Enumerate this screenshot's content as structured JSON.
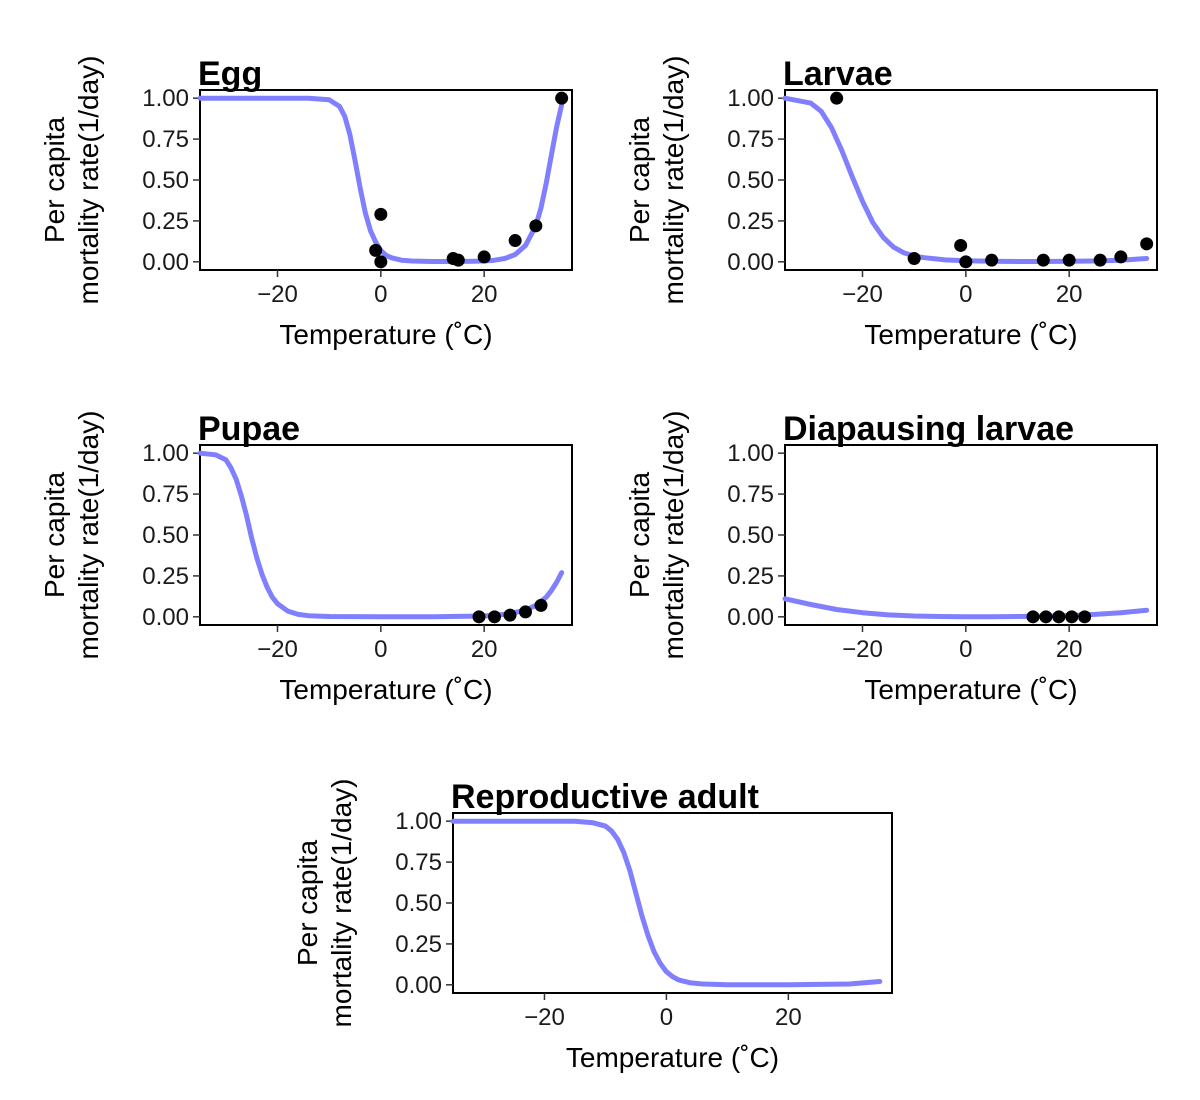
{
  "chart_data": [
    {
      "type": "line",
      "title": "Egg",
      "xlabel": "Temperature (˚C)",
      "ylabel": [
        "Per capita",
        "mortality rate(1/day)"
      ],
      "xlim": [
        -35,
        37
      ],
      "ylim": [
        -0.05,
        1.05
      ],
      "xticks": [
        -20,
        0,
        20
      ],
      "xtick_labels": [
        "−20",
        "0",
        "20"
      ],
      "yticks": [
        0,
        0.25,
        0.5,
        0.75,
        1.0
      ],
      "ytick_labels": [
        "0.00",
        "0.25",
        "0.50",
        "0.75",
        "1.00"
      ],
      "line_color": "#8080ff",
      "point_color": "#000000",
      "curve": {
        "x": [
          -35,
          -14,
          -10,
          -8,
          -7,
          -6,
          -5,
          -4,
          -3,
          -2,
          -1,
          0,
          1,
          2,
          4,
          6,
          10,
          14,
          18,
          20,
          22,
          24,
          26,
          28,
          30,
          31,
          32,
          33,
          34,
          35
        ],
        "y": [
          1.0,
          1.0,
          0.99,
          0.95,
          0.89,
          0.78,
          0.62,
          0.45,
          0.3,
          0.19,
          0.12,
          0.07,
          0.04,
          0.025,
          0.01,
          0.005,
          0.002,
          0.002,
          0.003,
          0.005,
          0.01,
          0.02,
          0.045,
          0.1,
          0.22,
          0.33,
          0.48,
          0.65,
          0.82,
          0.96
        ]
      },
      "points": {
        "x": [
          -1,
          0,
          0,
          14,
          15,
          20,
          26,
          30,
          35
        ],
        "y": [
          0.07,
          0.29,
          0.0,
          0.02,
          0.01,
          0.03,
          0.13,
          0.22,
          1.0
        ]
      }
    },
    {
      "type": "line",
      "title": "Larvae",
      "xlabel": "Temperature (˚C)",
      "ylabel": [
        "Per capita",
        "mortality rate(1/day)"
      ],
      "xlim": [
        -35,
        37
      ],
      "ylim": [
        -0.05,
        1.05
      ],
      "xticks": [
        -20,
        0,
        20
      ],
      "xtick_labels": [
        "−20",
        "0",
        "20"
      ],
      "yticks": [
        0,
        0.25,
        0.5,
        0.75,
        1.0
      ],
      "ytick_labels": [
        "0.00",
        "0.25",
        "0.50",
        "0.75",
        "1.00"
      ],
      "line_color": "#8080ff",
      "point_color": "#000000",
      "curve": {
        "x": [
          -35,
          -30,
          -28,
          -26,
          -24,
          -22,
          -20,
          -18,
          -16,
          -14,
          -12,
          -10,
          -8,
          -4,
          0,
          5,
          10,
          15,
          20,
          25,
          30,
          35
        ],
        "y": [
          1.0,
          0.97,
          0.92,
          0.82,
          0.68,
          0.52,
          0.37,
          0.24,
          0.15,
          0.09,
          0.055,
          0.035,
          0.025,
          0.012,
          0.006,
          0.003,
          0.002,
          0.002,
          0.003,
          0.005,
          0.01,
          0.02
        ]
      },
      "points": {
        "x": [
          -25,
          -10,
          -1,
          0,
          5,
          15,
          20,
          26,
          30,
          35
        ],
        "y": [
          1.0,
          0.02,
          0.1,
          0.0,
          0.01,
          0.01,
          0.01,
          0.01,
          0.03,
          0.11
        ]
      }
    },
    {
      "type": "line",
      "title": "Pupae",
      "xlabel": "Temperature (˚C)",
      "ylabel": [
        "Per capita",
        "mortality rate(1/day)"
      ],
      "xlim": [
        -35,
        37
      ],
      "ylim": [
        -0.05,
        1.05
      ],
      "xticks": [
        -20,
        0,
        20
      ],
      "xtick_labels": [
        "−20",
        "0",
        "20"
      ],
      "yticks": [
        0,
        0.25,
        0.5,
        0.75,
        1.0
      ],
      "ytick_labels": [
        "0.00",
        "0.25",
        "0.50",
        "0.75",
        "1.00"
      ],
      "line_color": "#8080ff",
      "point_color": "#000000",
      "curve": {
        "x": [
          -35,
          -32,
          -30,
          -29,
          -28,
          -27,
          -26,
          -25,
          -24,
          -23,
          -22,
          -21,
          -20,
          -18,
          -16,
          -14,
          -10,
          0,
          10,
          20,
          24,
          28,
          30,
          32,
          33,
          34,
          35
        ],
        "y": [
          1.0,
          0.99,
          0.96,
          0.91,
          0.84,
          0.74,
          0.62,
          0.48,
          0.36,
          0.26,
          0.18,
          0.12,
          0.08,
          0.035,
          0.015,
          0.007,
          0.002,
          0.0,
          0.0,
          0.005,
          0.015,
          0.04,
          0.07,
          0.12,
          0.16,
          0.21,
          0.27
        ]
      },
      "points": {
        "x": [
          19,
          22,
          25,
          28,
          31
        ],
        "y": [
          0.0,
          0.0,
          0.01,
          0.03,
          0.07
        ]
      }
    },
    {
      "type": "line",
      "title": "Diapausing larvae",
      "xlabel": "Temperature (˚C)",
      "ylabel": [
        "Per capita",
        "mortality rate(1/day)"
      ],
      "xlim": [
        -35,
        37
      ],
      "ylim": [
        -0.05,
        1.05
      ],
      "xticks": [
        -20,
        0,
        20
      ],
      "xtick_labels": [
        "−20",
        "0",
        "20"
      ],
      "yticks": [
        0,
        0.25,
        0.5,
        0.75,
        1.0
      ],
      "ytick_labels": [
        "0.00",
        "0.25",
        "0.50",
        "0.75",
        "1.00"
      ],
      "line_color": "#8080ff",
      "point_color": "#000000",
      "curve": {
        "x": [
          -35,
          -30,
          -25,
          -20,
          -15,
          -10,
          -5,
          0,
          5,
          10,
          15,
          20,
          25,
          30,
          35
        ],
        "y": [
          0.11,
          0.075,
          0.045,
          0.025,
          0.012,
          0.005,
          0.002,
          0.0,
          0.0,
          0.002,
          0.004,
          0.008,
          0.015,
          0.025,
          0.04
        ]
      },
      "points": {
        "x": [
          13,
          15.5,
          18,
          20.5,
          23
        ],
        "y": [
          0.0,
          0.0,
          0.0,
          0.0,
          0.0
        ]
      }
    },
    {
      "type": "line",
      "title": "Reproductive adult",
      "xlabel": "Temperature (˚C)",
      "ylabel": [
        "Per capita",
        "mortality rate(1/day)"
      ],
      "xlim": [
        -35,
        37
      ],
      "ylim": [
        -0.05,
        1.05
      ],
      "xticks": [
        -20,
        0,
        20
      ],
      "xtick_labels": [
        "−20",
        "0",
        "20"
      ],
      "yticks": [
        0,
        0.25,
        0.5,
        0.75,
        1.0
      ],
      "ytick_labels": [
        "0.00",
        "0.25",
        "0.50",
        "0.75",
        "1.00"
      ],
      "line_color": "#8080ff",
      "point_color": "#000000",
      "curve": {
        "x": [
          -35,
          -15,
          -12,
          -10,
          -9,
          -8,
          -7,
          -6,
          -5,
          -4,
          -3,
          -2,
          -1,
          0,
          1,
          2,
          4,
          6,
          10,
          20,
          30,
          35
        ],
        "y": [
          1.0,
          1.0,
          0.99,
          0.97,
          0.94,
          0.89,
          0.81,
          0.7,
          0.56,
          0.42,
          0.3,
          0.2,
          0.13,
          0.08,
          0.05,
          0.03,
          0.012,
          0.005,
          0.0,
          0.0,
          0.005,
          0.02
        ]
      },
      "points": {
        "x": [],
        "y": []
      }
    }
  ]
}
